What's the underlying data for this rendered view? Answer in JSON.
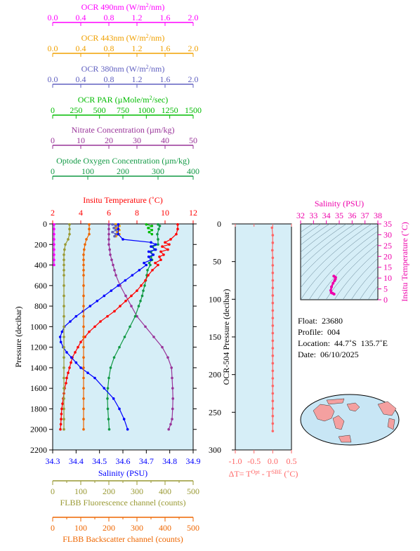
{
  "main_chart": {
    "type": "line",
    "yaxis": {
      "label": "Pressure (decibar)",
      "min": 0,
      "max": 2200,
      "ticks": [
        0,
        200,
        400,
        600,
        800,
        1000,
        1200,
        1400,
        1600,
        1800,
        2000,
        2200
      ]
    },
    "axes_top": [
      {
        "id": "ocr490",
        "title_parts": [
          "OCR 490nm (W/m",
          "2",
          "/nm)"
        ],
        "color": "#ff00ff",
        "min": 0,
        "max": 2,
        "ticks": [
          "0.0",
          "0.4",
          "0.8",
          "1.2",
          "1.6",
          "2.0"
        ]
      },
      {
        "id": "ocr443",
        "title_parts": [
          "OCR 443nm (W/m",
          "2",
          "/nm)"
        ],
        "color": "#f0a000",
        "min": 0,
        "max": 2,
        "ticks": [
          "0.0",
          "0.4",
          "0.8",
          "1.2",
          "1.6",
          "2.0"
        ]
      },
      {
        "id": "ocr380",
        "title_parts": [
          "OCR 380nm (W/m",
          "2",
          "/nm)"
        ],
        "color": "#6060c0",
        "min": 0,
        "max": 2,
        "ticks": [
          "0.0",
          "0.4",
          "0.8",
          "1.2",
          "1.6",
          "2.0"
        ]
      },
      {
        "id": "par",
        "title_parts": [
          "OCR PAR (µMole/m",
          "2",
          "/sec)"
        ],
        "color": "#00bb00",
        "min": 0,
        "max": 1500,
        "ticks": [
          "0",
          "250",
          "500",
          "750",
          "1000",
          "1250",
          "1500"
        ]
      },
      {
        "id": "nitrate",
        "title_parts": [
          "Nitrate Concentration (µm/kg)"
        ],
        "color": "#993399",
        "min": 0,
        "max": 50,
        "ticks": [
          "0",
          "10",
          "20",
          "30",
          "40",
          "50"
        ]
      },
      {
        "id": "oxygen",
        "title_parts": [
          "Optode Oxygen Concentration (µm/kg)"
        ],
        "color": "#119944",
        "min": 0,
        "max": 400,
        "ticks": [
          "0",
          "100",
          "200",
          "300",
          "400"
        ]
      },
      {
        "id": "temp",
        "title_parts": [
          "Insitu Temperature (˚C)"
        ],
        "color": "#ff0000",
        "min": 2,
        "max": 12,
        "ticks": [
          "2",
          "4",
          "6",
          "8",
          "10",
          "12"
        ]
      }
    ],
    "axes_bottom": [
      {
        "id": "salinity",
        "title_parts": [
          "Salinity (PSU)"
        ],
        "color": "#0000ff",
        "min": 34.3,
        "max": 34.9,
        "ticks": [
          "34.3",
          "34.4",
          "34.5",
          "34.6",
          "34.7",
          "34.8",
          "34.9"
        ]
      },
      {
        "id": "fluor",
        "title_parts": [
          "FLBB Fluorescence channel (counts)"
        ],
        "color": "#999933",
        "min": 0,
        "max": 500,
        "ticks": [
          "0",
          "50",
          "100",
          "150",
          "200",
          "250",
          "300",
          "350",
          "400",
          "450",
          "500"
        ]
      },
      {
        "id": "backscatter",
        "title_parts": [
          "FLBB Backscatter channel (counts)"
        ],
        "color": "#ee6600",
        "min": 0,
        "max": 500,
        "ticks": [
          "0",
          "50",
          "100",
          "150",
          "200",
          "250",
          "300",
          "350",
          "400",
          "450",
          "500"
        ]
      }
    ],
    "series": [
      {
        "axis": "ocr490",
        "color": "#ff00ff",
        "y": [
          5,
          50,
          100,
          150,
          200,
          250,
          300,
          350,
          400
        ],
        "x": [
          0.02,
          0.02,
          0.02,
          0.02,
          0.02,
          0.02,
          0.02,
          0.02,
          0.02
        ]
      },
      {
        "axis": "ocr443",
        "color": "#f0a000",
        "y": [
          5,
          20,
          40,
          60,
          80,
          100,
          120
        ],
        "x": [
          0.9,
          0.95,
          0.9,
          0.95,
          0.92,
          0.95,
          0.9
        ]
      },
      {
        "axis": "ocr380",
        "color": "#6060c0",
        "y": [
          5,
          20,
          40,
          60,
          80,
          100,
          120
        ],
        "x": [
          0.85,
          0.9,
          0.87,
          0.9,
          0.85,
          0.9,
          0.88
        ]
      },
      {
        "axis": "par",
        "color": "#00bb00",
        "y": [
          5,
          20,
          40,
          60,
          80,
          100
        ],
        "x": [
          1000,
          1060,
          1020,
          1060,
          1030,
          1060
        ]
      },
      {
        "axis": "nitrate",
        "color": "#993399",
        "y": [
          5,
          50,
          100,
          150,
          200,
          250,
          300,
          350,
          400,
          450,
          500,
          600,
          700,
          800,
          900,
          1000,
          1100,
          1200,
          1300,
          1400,
          1500,
          1600,
          1700,
          1800,
          1900,
          1950,
          2000
        ],
        "x": [
          20,
          20,
          20,
          20,
          20,
          20.3,
          20.5,
          21,
          21.5,
          22,
          22.5,
          24,
          26,
          28,
          30,
          33,
          36,
          39,
          41,
          42.3,
          42.5,
          42.7,
          42.8,
          42.7,
          42.5,
          42,
          41.3
        ]
      },
      {
        "axis": "oxygen",
        "color": "#119944",
        "y": [
          5,
          20,
          50,
          100,
          150,
          200,
          220,
          250,
          270,
          300,
          320,
          350,
          380,
          400,
          450,
          500,
          550,
          600,
          650,
          700,
          750,
          800,
          900,
          1000,
          1100,
          1200,
          1300,
          1400,
          1500,
          1600,
          1700,
          1800,
          1900,
          2000
        ],
        "x": [
          300,
          305,
          302,
          298,
          300,
          300,
          285,
          290,
          280,
          285,
          280,
          283,
          275,
          278,
          270,
          268,
          265,
          262,
          258,
          255,
          250,
          245,
          235,
          220,
          205,
          190,
          175,
          165,
          160,
          157,
          156,
          157,
          159,
          161
        ]
      },
      {
        "axis": "temp",
        "color": "#ff0000",
        "y": [
          5,
          50,
          100,
          150,
          180,
          200,
          220,
          250,
          270,
          300,
          320,
          350,
          380,
          400,
          450,
          500,
          550,
          600,
          650,
          700,
          750,
          800,
          850,
          900,
          950,
          1000,
          1050,
          1100,
          1150,
          1200,
          1250,
          1300,
          1350,
          1400,
          1450,
          1500,
          1550,
          1600,
          1650,
          1700,
          1750,
          1800,
          1850,
          1900,
          1950,
          2000
        ],
        "x": [
          10.9,
          10.9,
          10.8,
          10.4,
          10.0,
          10.3,
          9.8,
          10.2,
          9.7,
          9.9,
          9.6,
          9.7,
          9.3,
          9.5,
          9.1,
          8.8,
          8.6,
          8.3,
          8.0,
          7.6,
          7.2,
          6.8,
          6.4,
          5.9,
          5.4,
          5.0,
          4.6,
          4.3,
          4.0,
          3.8,
          3.6,
          3.4,
          3.3,
          3.2,
          3.1,
          3.0,
          2.95,
          2.85,
          2.8,
          2.75,
          2.7,
          2.65,
          2.62,
          2.6,
          2.58,
          2.55
        ]
      },
      {
        "axis": "salinity",
        "color": "#0000ff",
        "y": [
          5,
          50,
          100,
          150,
          180,
          200,
          220,
          250,
          270,
          300,
          320,
          350,
          380,
          400,
          450,
          500,
          550,
          600,
          650,
          700,
          750,
          800,
          850,
          900,
          950,
          1000,
          1050,
          1100,
          1150,
          1200,
          1250,
          1300,
          1350,
          1400,
          1450,
          1500,
          1600,
          1700,
          1800,
          1900,
          2000
        ],
        "x": [
          34.58,
          34.58,
          34.58,
          34.6,
          34.72,
          34.74,
          34.72,
          34.74,
          34.71,
          34.73,
          34.71,
          34.72,
          34.69,
          34.7,
          34.67,
          34.64,
          34.61,
          34.58,
          34.55,
          34.52,
          34.49,
          34.46,
          34.43,
          34.4,
          34.375,
          34.35,
          34.34,
          34.332,
          34.335,
          34.345,
          34.36,
          34.38,
          34.4,
          34.42,
          34.45,
          34.48,
          34.52,
          34.56,
          34.585,
          34.605,
          34.62
        ]
      },
      {
        "axis": "fluor",
        "color": "#999933",
        "y": [
          5,
          50,
          100,
          150,
          200,
          250,
          300,
          350,
          400,
          450,
          500,
          600,
          700,
          800,
          900,
          1000,
          1100,
          1200,
          1300,
          1400,
          1500,
          1600,
          1700,
          1800,
          1900,
          2000
        ],
        "x": [
          60,
          60,
          60,
          55,
          45,
          42,
          40,
          40,
          40,
          40,
          40,
          40,
          40,
          40,
          40,
          40,
          40,
          40,
          40,
          40,
          40,
          40,
          40,
          40,
          40,
          40
        ]
      },
      {
        "axis": "backscatter",
        "color": "#ee6600",
        "y": [
          5,
          50,
          100,
          150,
          200,
          250,
          300,
          350,
          400,
          450,
          500,
          600,
          700,
          800,
          900,
          1000,
          1100,
          1200,
          1300,
          1400,
          1500,
          1600,
          1700,
          1800,
          1900,
          2000
        ],
        "x": [
          130,
          130,
          130,
          120,
          115,
          112,
          110,
          110,
          110,
          110,
          110,
          110,
          110,
          110,
          110,
          110,
          110,
          110,
          110,
          110,
          110,
          110,
          110,
          110,
          110,
          110
        ]
      }
    ]
  },
  "dt_chart": {
    "type": "line",
    "ylabel": "OCR-504 Pressure (decibar)",
    "ymin": 0,
    "ymax": 300,
    "yticks": [
      "0",
      "50",
      "100",
      "150",
      "200",
      "250",
      "300"
    ],
    "xmin": -1.0,
    "xmax": 0.5,
    "xticks": [
      "-1.0",
      "-0.5",
      "0.0",
      "0.5"
    ],
    "xlabel_parts": [
      "ΔT= T",
      "Opt",
      " - T",
      "SBE",
      " (˚C)"
    ],
    "color": "#ff6666",
    "y": [
      5,
      15,
      25,
      35,
      45,
      55,
      65,
      75,
      85,
      95,
      105,
      115,
      125,
      135,
      145,
      155,
      165,
      175,
      185,
      195,
      205,
      215,
      225,
      235,
      245,
      255,
      265,
      275
    ],
    "x": [
      -0.02,
      0,
      0,
      -0.01,
      0,
      0,
      0,
      0,
      0,
      0,
      0,
      0,
      0,
      0,
      0,
      0,
      0,
      0,
      0,
      0,
      0,
      0,
      0,
      0,
      0,
      0,
      0,
      0
    ]
  },
  "ts_chart": {
    "type": "scatter",
    "xlabel": "Salinity (PSU)",
    "ylabel": "Insitu Temperature (˚C)",
    "xmin": 32,
    "xmax": 38,
    "ymin": 0,
    "ymax": 35,
    "xticks": [
      "32",
      "33",
      "34",
      "35",
      "36",
      "37",
      "38"
    ],
    "yticks": [
      "0",
      "5",
      "10",
      "15",
      "20",
      "25",
      "30",
      "35"
    ],
    "color": "#ee00aa",
    "x": [
      34.58,
      34.72,
      34.7,
      34.64,
      34.52,
      34.4,
      34.34,
      34.38,
      34.48,
      34.6
    ],
    "y": [
      10.9,
      10.3,
      9.5,
      8.8,
      7.6,
      5.9,
      4.3,
      3.3,
      3.0,
      2.6
    ]
  },
  "info": {
    "float": "Float:  23680",
    "profile": "Profile:  004",
    "location": "Location:  44.7˚S  135.7˚E",
    "date": "Date:  06/10/2025"
  },
  "colors": {
    "plot_bg": "#d6eef7",
    "map_ocean": "#c8e6f5",
    "map_land": "#f4a0a0"
  }
}
